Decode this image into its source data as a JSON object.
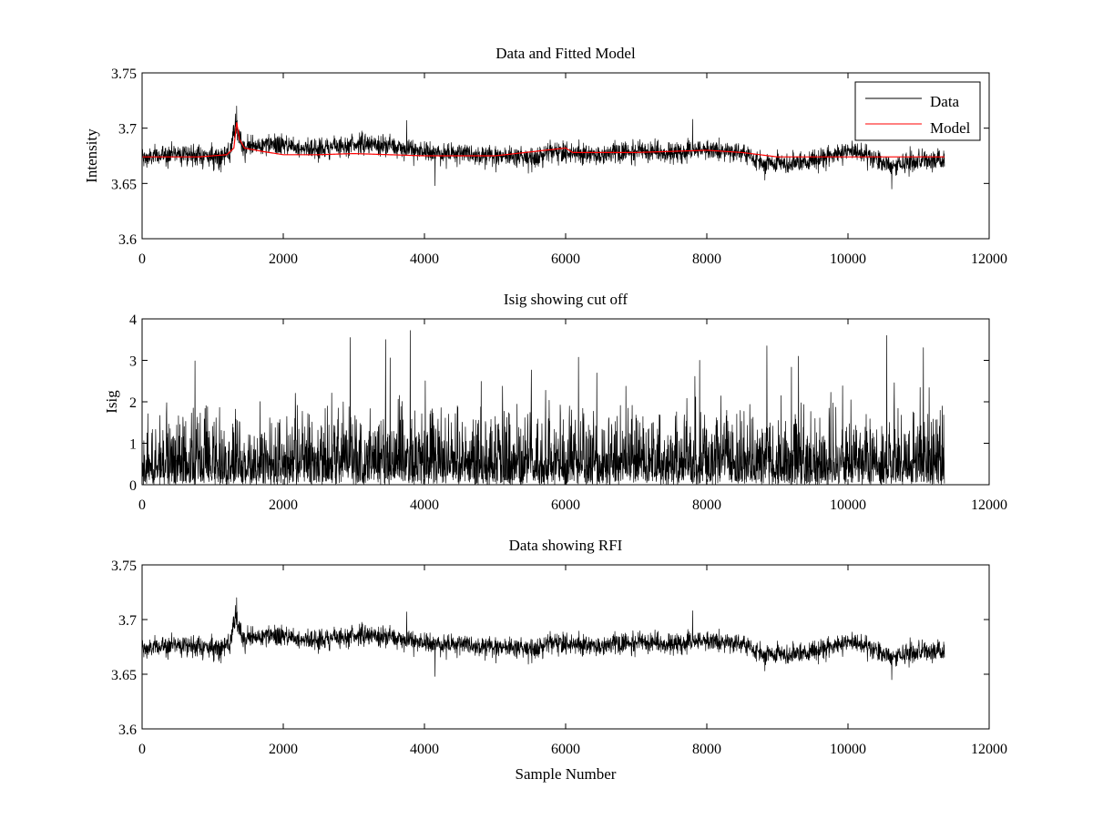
{
  "chart_data": [
    {
      "type": "line",
      "title": "Data and Fitted Model",
      "xlabel": "",
      "ylabel": "Intensity",
      "xlim": [
        0,
        12000
      ],
      "ylim": [
        3.6,
        3.75
      ],
      "xticks": [
        0,
        2000,
        4000,
        6000,
        8000,
        10000,
        12000
      ],
      "yticks": [
        3.6,
        3.65,
        3.7,
        3.75
      ],
      "xtick_labels": [
        "0",
        "2000",
        "4000",
        "6000",
        "8000",
        "10000",
        "12000"
      ],
      "ytick_labels": [
        "3.6",
        "3.65",
        "3.7",
        "3.75"
      ],
      "grid": false,
      "legend": "top-right",
      "n_samples": 11370,
      "series": [
        {
          "name": "Data",
          "color": "#000000",
          "style": "noisy",
          "x": [
            0,
            500,
            1000,
            1250,
            1320,
            1360,
            1450,
            1600,
            2000,
            2500,
            3000,
            3500,
            4000,
            4500,
            5000,
            5500,
            6000,
            6500,
            7000,
            7500,
            8000,
            8500,
            8800,
            9200,
            9600,
            10000,
            10300,
            10600,
            11000,
            11370
          ],
          "y": [
            3.672,
            3.678,
            3.674,
            3.676,
            3.705,
            3.69,
            3.682,
            3.684,
            3.685,
            3.681,
            3.686,
            3.684,
            3.678,
            3.677,
            3.676,
            3.674,
            3.679,
            3.676,
            3.68,
            3.677,
            3.681,
            3.678,
            3.668,
            3.669,
            3.672,
            3.68,
            3.676,
            3.666,
            3.67,
            3.671
          ],
          "noise_amplitude": 0.0085,
          "spikes": [
            [
              1340,
              3.72
            ],
            [
              3750,
              3.707
            ],
            [
              7800,
              3.708
            ],
            [
              4150,
              3.648
            ],
            [
              10620,
              3.645
            ]
          ]
        },
        {
          "name": "Model",
          "color": "#ff0000",
          "style": "smooth",
          "x": [
            0,
            800,
            1200,
            1300,
            1340,
            1380,
            1450,
            1700,
            2000,
            2500,
            3000,
            3500,
            4000,
            5000,
            6000,
            6100,
            6500,
            7000,
            8000,
            8500,
            9000,
            10000,
            11000,
            11370
          ],
          "y": [
            3.674,
            3.674,
            3.676,
            3.682,
            3.705,
            3.69,
            3.682,
            3.679,
            3.676,
            3.676,
            3.677,
            3.676,
            3.675,
            3.675,
            3.682,
            3.678,
            3.678,
            3.678,
            3.68,
            3.678,
            3.674,
            3.674,
            3.674,
            3.674
          ]
        }
      ]
    },
    {
      "type": "line",
      "title": "Isig showing cut off",
      "xlabel": "",
      "ylabel": "Isig",
      "xlim": [
        0,
        12000
      ],
      "ylim": [
        0,
        4
      ],
      "xticks": [
        0,
        2000,
        4000,
        6000,
        8000,
        10000,
        12000
      ],
      "yticks": [
        0,
        1,
        2,
        3,
        4
      ],
      "xtick_labels": [
        "0",
        "2000",
        "4000",
        "6000",
        "8000",
        "10000",
        "12000"
      ],
      "ytick_labels": [
        "0",
        "1",
        "2",
        "3",
        "4"
      ],
      "grid": false,
      "n_samples": 11370,
      "series": [
        {
          "name": "",
          "color": "#000000",
          "style": "abs-noise",
          "x": [
            0,
            11370
          ],
          "y": [
            0,
            0
          ],
          "scale": 0.75,
          "spikes": [
            [
              2950,
              3.55
            ],
            [
              3800,
              3.72
            ],
            [
              3450,
              3.5
            ],
            [
              10550,
              3.6
            ],
            [
              9300,
              3.1
            ],
            [
              7900,
              3.0
            ],
            [
              8850,
              3.35
            ]
          ]
        }
      ]
    },
    {
      "type": "line",
      "title": "Data showing RFI",
      "xlabel": "Sample Number",
      "ylabel": "",
      "xlim": [
        0,
        12000
      ],
      "ylim": [
        3.6,
        3.75
      ],
      "xticks": [
        0,
        2000,
        4000,
        6000,
        8000,
        10000,
        12000
      ],
      "yticks": [
        3.6,
        3.65,
        3.7,
        3.75
      ],
      "xtick_labels": [
        "0",
        "2000",
        "4000",
        "6000",
        "8000",
        "10000",
        "12000"
      ],
      "ytick_labels": [
        "3.6",
        "3.65",
        "3.7",
        "3.75"
      ],
      "grid": false,
      "n_samples": 11370,
      "series": [
        {
          "name": "",
          "color": "#000000",
          "style": "noisy",
          "x": [
            0,
            500,
            1000,
            1250,
            1320,
            1360,
            1450,
            1600,
            2000,
            2500,
            3000,
            3500,
            4000,
            4500,
            5000,
            5500,
            6000,
            6500,
            7000,
            7500,
            8000,
            8500,
            8800,
            9200,
            9600,
            10000,
            10300,
            10600,
            11000,
            11370
          ],
          "y": [
            3.672,
            3.678,
            3.674,
            3.676,
            3.705,
            3.69,
            3.682,
            3.684,
            3.685,
            3.681,
            3.686,
            3.684,
            3.678,
            3.677,
            3.676,
            3.674,
            3.679,
            3.676,
            3.68,
            3.677,
            3.681,
            3.678,
            3.668,
            3.669,
            3.672,
            3.68,
            3.676,
            3.666,
            3.67,
            3.671
          ],
          "noise_amplitude": 0.0085,
          "spikes": [
            [
              1340,
              3.72
            ],
            [
              3750,
              3.707
            ],
            [
              7800,
              3.708
            ],
            [
              4150,
              3.648
            ],
            [
              10620,
              3.645
            ]
          ]
        }
      ]
    }
  ]
}
